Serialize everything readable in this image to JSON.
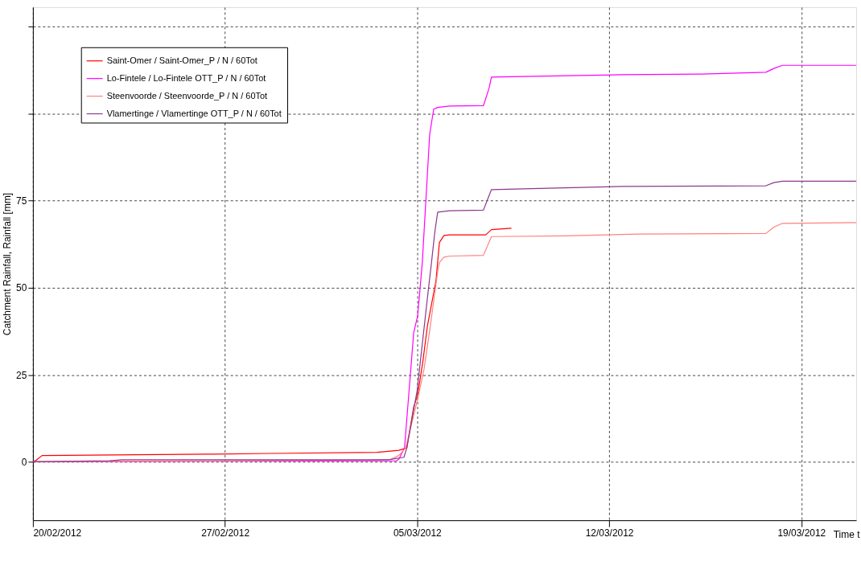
{
  "chart_data": {
    "type": "line",
    "ylabel": "Catchment Rainfall, Rainfall [mm]",
    "xlabel": "Time t",
    "xlim": [
      "2012-02-20",
      "2012-03-21"
    ],
    "xticks": [
      {
        "value": "2012-02-20",
        "label": "20/02/2012"
      },
      {
        "value": "2012-02-27",
        "label": "27/02/2012"
      },
      {
        "value": "2012-03-05",
        "label": "05/03/2012"
      },
      {
        "value": "2012-03-12",
        "label": "12/03/2012"
      },
      {
        "value": "2012-03-19",
        "label": "19/03/2012"
      }
    ],
    "ylim": [
      -16.8,
      130.6
    ],
    "yticks": [
      0,
      25,
      50,
      75,
      {
        "value": 100,
        "label": null
      },
      {
        "value": 125,
        "label": null
      }
    ],
    "grid": true,
    "legend": "top left",
    "line_style": "solid",
    "marker": "none",
    "series": [
      {
        "name": "Saint-Omer / Saint-Omer_P / N / 60Tot",
        "color": "#ff0000",
        "x": [
          "2012-02-20",
          "2012-02-20T03:00",
          "2012-02-20T08:00",
          "2012-02-26T14:00",
          "2012-02-28T14:00",
          "2012-03-03T13:00",
          "2012-03-04T08:00",
          "2012-03-04T15:00",
          "2012-03-04T21:00",
          "2012-03-05T00:30",
          "2012-03-05T05:00",
          "2012-03-05T09:00",
          "2012-03-05T16:30",
          "2012-03-05T19:30",
          "2012-03-05T23:30",
          "2012-03-06T04:30",
          "2012-03-07T12:00",
          "2012-03-07T17:00",
          "2012-03-08T10:30"
        ],
        "values": [
          0,
          0.5,
          1.8,
          2.2,
          2.4,
          2.7,
          3.3,
          4,
          15.7,
          19.3,
          28.7,
          39,
          52,
          63,
          65,
          65.2,
          65.2,
          66.7,
          67.1
        ]
      },
      {
        "name": "Lo-Fintele / Lo-Fintele OTT_P / N / 60Tot",
        "color": "#ff00ff",
        "x": [
          "2012-02-20",
          "2012-03-04T06:00",
          "2012-03-04T08:00",
          "2012-03-04T13:00",
          "2012-03-04T21:00",
          "2012-03-05T00:30",
          "2012-03-05T04:30",
          "2012-03-05T11:00",
          "2012-03-05T14:30",
          "2012-03-05T18:00",
          "2012-03-06T04:30",
          "2012-03-07T10:00",
          "2012-03-07T15:00",
          "2012-03-07T17:00",
          "2012-03-08T21:00",
          "2012-03-12T11:00",
          "2012-03-15T09:00",
          "2012-03-17T17:00",
          "2012-03-18T00:00",
          "2012-03-18T07:30",
          "2012-03-21"
        ],
        "values": [
          0,
          0.3,
          0.7,
          4,
          37,
          42,
          57,
          94,
          101.3,
          101.8,
          102.2,
          102.3,
          107.4,
          110.5,
          110.7,
          111.2,
          111.4,
          111.9,
          113,
          113.9,
          113.9
        ]
      },
      {
        "name": "Steenvoorde / Steenvoorde_P / N / 60Tot",
        "color": "#ff8080",
        "x": [
          "2012-02-20",
          "2012-02-27",
          "2012-03-03T06:00",
          "2012-03-04T01:00",
          "2012-03-04T08:00",
          "2012-03-04T14:00",
          "2012-03-05T00:30",
          "2012-03-05T06:00",
          "2012-03-05T11:00",
          "2012-03-05T18:00",
          "2012-03-05T19:30",
          "2012-03-05T23:30",
          "2012-03-06T04:30",
          "2012-03-07T10:00",
          "2012-03-07T17:00",
          "2012-03-10T09:00",
          "2012-03-13T01:00",
          "2012-03-17T17:00",
          "2012-03-18T00:00",
          "2012-03-18T07:30",
          "2012-03-21"
        ],
        "values": [
          0,
          0.3,
          0.5,
          0.7,
          1.8,
          4,
          18,
          26.5,
          37.7,
          54.6,
          57.3,
          58.8,
          59.1,
          59.3,
          64.7,
          64.9,
          65.4,
          65.6,
          67.4,
          68.5,
          68.7
        ]
      },
      {
        "name": "Vlamertinge / Vlamertinge OTT_P / N / 60Tot",
        "color": "#8b3a8b",
        "x": [
          "2012-02-20",
          "2012-02-22T19:00",
          "2012-02-23T06:00",
          "2012-03-03T23:00",
          "2012-03-04T12:30",
          "2012-03-04T15:00",
          "2012-03-05T00:00",
          "2012-03-05T09:00",
          "2012-03-05T12:30",
          "2012-03-05T15:30",
          "2012-03-05T18:00",
          "2012-03-06T04:30",
          "2012-03-07T10:00",
          "2012-03-07T17:00",
          "2012-03-08T21:00",
          "2012-03-12T11:00",
          "2012-03-17T17:00",
          "2012-03-18T00:00",
          "2012-03-18T07:30",
          "2012-03-21"
        ],
        "values": [
          0,
          0.3,
          0.6,
          0.6,
          1.3,
          4,
          20.4,
          47,
          57,
          66,
          71.7,
          72.1,
          72.3,
          78.2,
          78.4,
          79.1,
          79.3,
          80.2,
          80.6,
          80.6
        ]
      }
    ]
  }
}
